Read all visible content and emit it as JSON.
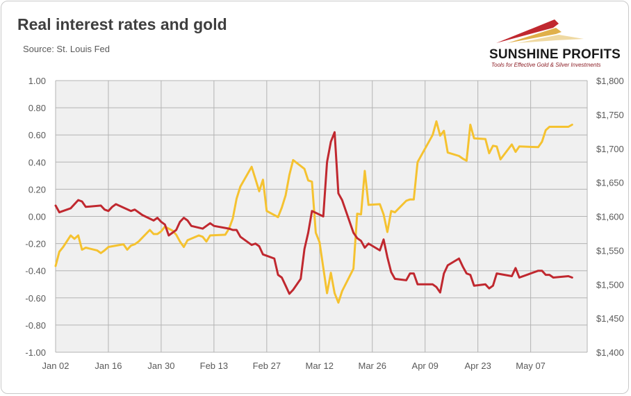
{
  "header": {
    "title": "Real interest rates and gold",
    "subtitle": "Source: St. Louis Fed"
  },
  "logo": {
    "name": "SUNSHINE PROFITS",
    "tagline": "Tools for Effective Gold & Silver Investments",
    "colors": [
      "#c0282f",
      "#e0b04a"
    ]
  },
  "chart_data": {
    "type": "line",
    "title": "Real interest rates and gold",
    "subtitle": "Source: St. Louis Fed",
    "x_ticks": [
      "Jan 02",
      "Jan 16",
      "Jan 30",
      "Feb 13",
      "Feb 27",
      "Mar 12",
      "Mar 26",
      "Apr 09",
      "Apr 23",
      "May 07"
    ],
    "x_range": [
      0,
      141
    ],
    "y_left": {
      "range": [
        -1.0,
        1.0
      ],
      "ticks": [
        "1.00",
        "0.80",
        "0.60",
        "0.40",
        "0.20",
        "0.00",
        "-0.20",
        "-0.40",
        "-0.60",
        "-0.80",
        "-1.00"
      ]
    },
    "y_right": {
      "range": [
        1400,
        1800
      ],
      "ticks": [
        "$1,800",
        "$1,750",
        "$1,700",
        "$1,650",
        "$1,600",
        "$1,550",
        "$1,500",
        "$1,450",
        "$1,400"
      ]
    },
    "grid": true,
    "series": [
      {
        "axis": "left",
        "color": "#c0282f",
        "points": [
          [
            0,
            0.08
          ],
          [
            1,
            0.03
          ],
          [
            4,
            0.06
          ],
          [
            6,
            0.12
          ],
          [
            7,
            0.11
          ],
          [
            8,
            0.07
          ],
          [
            12,
            0.08
          ],
          [
            13,
            0.05
          ],
          [
            14,
            0.04
          ],
          [
            15,
            0.07
          ],
          [
            16,
            0.09
          ],
          [
            20,
            0.04
          ],
          [
            21,
            0.05
          ],
          [
            22,
            0.03
          ],
          [
            23,
            0.01
          ],
          [
            26,
            -0.03
          ],
          [
            27,
            -0.01
          ],
          [
            28,
            -0.04
          ],
          [
            29,
            -0.06
          ],
          [
            30,
            -0.14
          ],
          [
            31,
            -0.12
          ],
          [
            32,
            -0.1
          ],
          [
            33,
            -0.04
          ],
          [
            34,
            -0.01
          ],
          [
            35,
            -0.03
          ],
          [
            36,
            -0.07
          ],
          [
            39,
            -0.09
          ],
          [
            40,
            -0.07
          ],
          [
            41,
            -0.05
          ],
          [
            42,
            -0.07
          ],
          [
            46,
            -0.09
          ],
          [
            47,
            -0.1
          ],
          [
            48,
            -0.1
          ],
          [
            49,
            -0.15
          ],
          [
            52,
            -0.21
          ],
          [
            53,
            -0.2
          ],
          [
            54,
            -0.22
          ],
          [
            55,
            -0.28
          ],
          [
            58,
            -0.31
          ],
          [
            59,
            -0.43
          ],
          [
            60,
            -0.45
          ],
          [
            61,
            -0.51
          ],
          [
            62,
            -0.57
          ],
          [
            63,
            -0.54
          ],
          [
            65,
            -0.46
          ],
          [
            66,
            -0.24
          ],
          [
            67,
            -0.12
          ],
          [
            68,
            0.04
          ],
          [
            71,
            0.0
          ],
          [
            72,
            0.4
          ],
          [
            73,
            0.55
          ],
          [
            74,
            0.62
          ],
          [
            75,
            0.17
          ],
          [
            76,
            0.12
          ],
          [
            79,
            -0.12
          ],
          [
            80,
            -0.16
          ],
          [
            81,
            -0.18
          ],
          [
            82,
            -0.23
          ],
          [
            83,
            -0.2
          ],
          [
            86,
            -0.25
          ],
          [
            87,
            -0.17
          ],
          [
            88,
            -0.3
          ],
          [
            89,
            -0.41
          ],
          [
            90,
            -0.46
          ],
          [
            93,
            -0.47
          ],
          [
            94,
            -0.42
          ],
          [
            95,
            -0.42
          ],
          [
            96,
            -0.5
          ],
          [
            100,
            -0.5
          ],
          [
            101,
            -0.52
          ],
          [
            102,
            -0.56
          ],
          [
            103,
            -0.42
          ],
          [
            104,
            -0.36
          ],
          [
            107,
            -0.31
          ],
          [
            108,
            -0.37
          ],
          [
            109,
            -0.42
          ],
          [
            110,
            -0.43
          ],
          [
            111,
            -0.51
          ],
          [
            114,
            -0.5
          ],
          [
            115,
            -0.53
          ],
          [
            116,
            -0.51
          ],
          [
            117,
            -0.42
          ],
          [
            121,
            -0.44
          ],
          [
            122,
            -0.38
          ],
          [
            123,
            -0.45
          ],
          [
            128,
            -0.4
          ],
          [
            129,
            -0.4
          ],
          [
            130,
            -0.43
          ],
          [
            131,
            -0.43
          ],
          [
            132,
            -0.45
          ],
          [
            136,
            -0.44
          ],
          [
            137,
            -0.45
          ]
        ]
      },
      {
        "axis": "right",
        "color": "#f5c230",
        "points": [
          [
            0,
            1527
          ],
          [
            1,
            1548
          ],
          [
            2,
            1555
          ],
          [
            4,
            1572
          ],
          [
            5,
            1567
          ],
          [
            6,
            1572
          ],
          [
            7,
            1551
          ],
          [
            8,
            1554
          ],
          [
            11,
            1550
          ],
          [
            12,
            1546
          ],
          [
            13,
            1550
          ],
          [
            14,
            1555
          ],
          [
            18,
            1559
          ],
          [
            19,
            1551
          ],
          [
            20,
            1557
          ],
          [
            21,
            1559
          ],
          [
            22,
            1563
          ],
          [
            25,
            1580
          ],
          [
            26,
            1574
          ],
          [
            27,
            1574
          ],
          [
            28,
            1578
          ],
          [
            29,
            1585
          ],
          [
            31,
            1579
          ],
          [
            32,
            1573
          ],
          [
            33,
            1563
          ],
          [
            34,
            1555
          ],
          [
            35,
            1565
          ],
          [
            38,
            1572
          ],
          [
            39,
            1570
          ],
          [
            40,
            1563
          ],
          [
            41,
            1572
          ],
          [
            45,
            1573
          ],
          [
            46,
            1582
          ],
          [
            47,
            1597
          ],
          [
            48,
            1626
          ],
          [
            49,
            1644
          ],
          [
            52,
            1673
          ],
          [
            53,
            1655
          ],
          [
            54,
            1637
          ],
          [
            55,
            1654
          ],
          [
            56,
            1608
          ],
          [
            59,
            1599
          ],
          [
            60,
            1613
          ],
          [
            61,
            1631
          ],
          [
            62,
            1661
          ],
          [
            63,
            1683
          ],
          [
            66,
            1670
          ],
          [
            67,
            1653
          ],
          [
            68,
            1651
          ],
          [
            69,
            1576
          ],
          [
            70,
            1562
          ],
          [
            72,
            1487
          ],
          [
            73,
            1517
          ],
          [
            74,
            1487
          ],
          [
            75,
            1473
          ],
          [
            76,
            1490
          ],
          [
            79,
            1523
          ],
          [
            80,
            1604
          ],
          [
            81,
            1603
          ],
          [
            82,
            1667
          ],
          [
            83,
            1617
          ],
          [
            86,
            1618
          ],
          [
            87,
            1603
          ],
          [
            88,
            1577
          ],
          [
            89,
            1608
          ],
          [
            90,
            1606
          ],
          [
            93,
            1623
          ],
          [
            94,
            1625
          ],
          [
            95,
            1625
          ],
          [
            96,
            1680
          ],
          [
            100,
            1720
          ],
          [
            101,
            1740
          ],
          [
            102,
            1719
          ],
          [
            103,
            1726
          ],
          [
            104,
            1694
          ],
          [
            107,
            1689
          ],
          [
            108,
            1685
          ],
          [
            109,
            1682
          ],
          [
            110,
            1735
          ],
          [
            111,
            1715
          ],
          [
            114,
            1714
          ],
          [
            115,
            1693
          ],
          [
            116,
            1704
          ],
          [
            117,
            1703
          ],
          [
            118,
            1684
          ],
          [
            121,
            1706
          ],
          [
            122,
            1695
          ],
          [
            123,
            1703
          ],
          [
            128,
            1702
          ],
          [
            129,
            1710
          ],
          [
            130,
            1727
          ],
          [
            131,
            1732
          ],
          [
            132,
            1732
          ],
          [
            136,
            1732
          ],
          [
            137,
            1735
          ]
        ]
      }
    ]
  }
}
